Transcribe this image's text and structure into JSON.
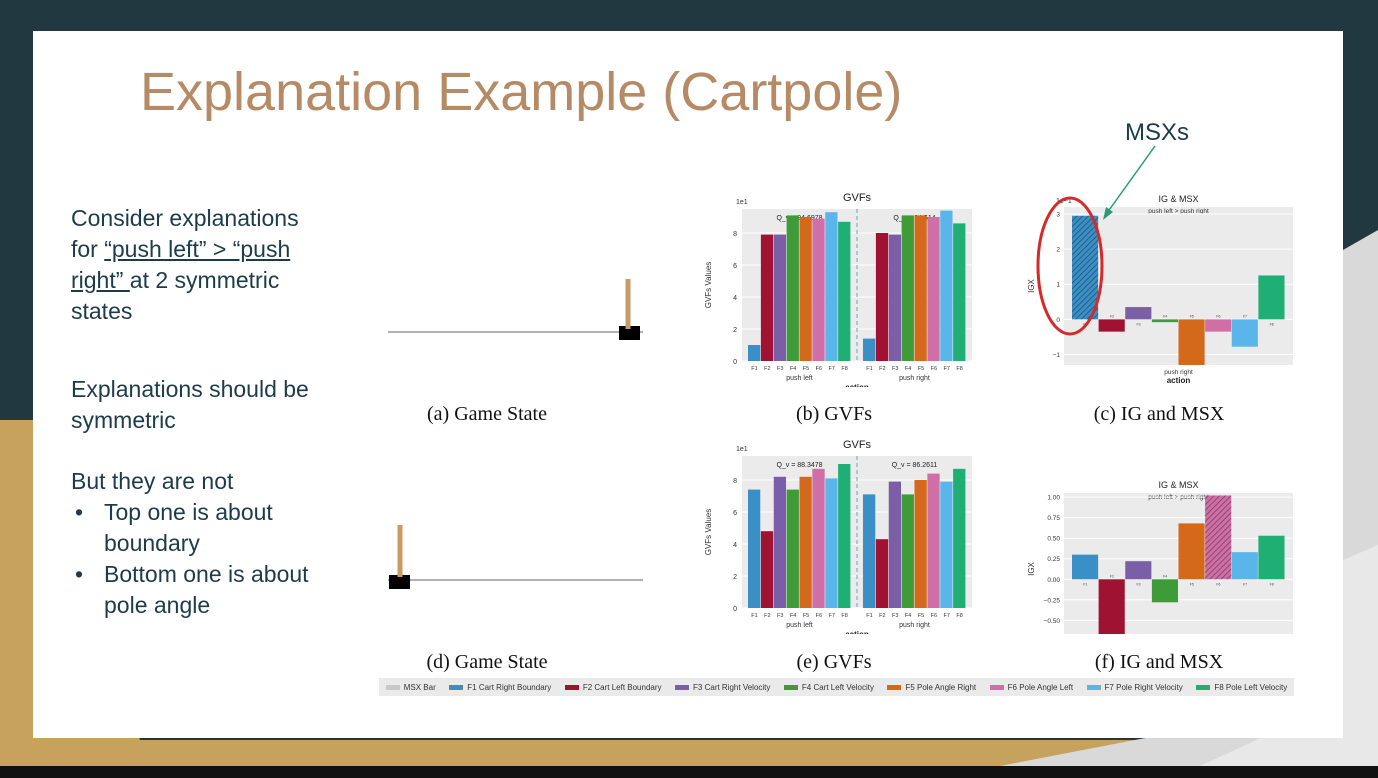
{
  "slide": {
    "title": "Explanation Example (Cartpole)",
    "intro_1": "Consider explanations",
    "intro_2a": "for ",
    "intro_2b": "“push left” > “push",
    "intro_3a": "right” ",
    "intro_3b": "at 2 symmetric",
    "intro_4": "states",
    "sym_1": "Explanations should be",
    "sym_2": "symmetric",
    "not_line": "But they are not",
    "bullet_1a": "Top one is about",
    "bullet_1b": "boundary",
    "bullet_2a": "Bottom one is about",
    "bullet_2b": "pole angle",
    "msxs_label": "MSXs"
  },
  "captions": {
    "a": "(a) Game State",
    "b": "(b) GVFs",
    "c": "(c) IG and MSX",
    "d": "(d) Game State",
    "e": "(e) GVFs",
    "f": "(f) IG and MSX"
  },
  "colors": {
    "F1": "#3a8fc7",
    "F2": "#a01232",
    "F3": "#7b5ea8",
    "F4": "#3f9a38",
    "F5": "#d4691c",
    "F6": "#cf6fa6",
    "F7": "#5ab6ea",
    "F8": "#1fae73",
    "msx": "#c8c8c8",
    "title": "#b58a64",
    "text": "#1d3b4a",
    "msx_circle": "#d42a2a",
    "arrow": "#2a9a78"
  },
  "legend": [
    {
      "label": "MSX Bar",
      "color": "#c8c8c8"
    },
    {
      "label": "F1 Cart Right Boundary",
      "color": "#3a8fc7"
    },
    {
      "label": "F2 Cart Left Boundary",
      "color": "#a01232"
    },
    {
      "label": "F3 Cart Right Velocity",
      "color": "#7b5ea8"
    },
    {
      "label": "F4 Cart Left Velocity",
      "color": "#3f9a38"
    },
    {
      "label": "F5 Pole Angle Right",
      "color": "#d4691c"
    },
    {
      "label": "F6 Pole Angle Left",
      "color": "#cf6fa6"
    },
    {
      "label": "F7 Pole Right Velocity",
      "color": "#5ab6ea"
    },
    {
      "label": "F8 Pole Left Velocity",
      "color": "#1fae73"
    }
  ],
  "chart_data": [
    {
      "id": "gvf-top",
      "type": "bar",
      "title": "GVFs",
      "scale_label": "1e1",
      "ylabel": "GVFs Values",
      "xlabel": "action",
      "ylim": [
        0,
        9.5
      ],
      "yticks": [
        0,
        2,
        4,
        6,
        8
      ],
      "categories": [
        "F1",
        "F2",
        "F3",
        "F4",
        "F5",
        "F6",
        "F7",
        "F8"
      ],
      "groups": [
        {
          "name": "push left",
          "q_label": "Q_v = 94.6978",
          "values": [
            1.0,
            7.9,
            7.9,
            9.1,
            9.0,
            8.9,
            9.3,
            8.7
          ]
        },
        {
          "name": "push right",
          "q_label": "Q_v = 94.514",
          "values": [
            1.4,
            8.0,
            7.9,
            9.1,
            9.1,
            9.0,
            9.4,
            8.6
          ]
        }
      ]
    },
    {
      "id": "igmsx-top",
      "type": "bar",
      "title": "IG & MSX",
      "subtitle": "push left > push right",
      "scale_label": "1e−1",
      "ylabel": "IGX",
      "xlabel": "action",
      "xtick": "push right",
      "ylim": [
        -1.3,
        3.2
      ],
      "yticks": [
        -1,
        0,
        1,
        2,
        3
      ],
      "ytick_labels": [
        "−1",
        "0",
        "1",
        "2",
        "3"
      ],
      "categories": [
        "F1",
        "F2",
        "F3",
        "F4",
        "F5",
        "F6",
        "F7",
        "F8"
      ],
      "values": [
        2.95,
        -0.35,
        0.35,
        -0.08,
        -1.3,
        -0.35,
        -0.78,
        1.25
      ],
      "msx": [
        "F1"
      ]
    },
    {
      "id": "gvf-bottom",
      "type": "bar",
      "title": "GVFs",
      "scale_label": "1e1",
      "ylabel": "GVFs Values",
      "xlabel": "action",
      "ylim": [
        0,
        9.5
      ],
      "yticks": [
        0,
        2,
        4,
        6,
        8
      ],
      "categories": [
        "F1",
        "F2",
        "F3",
        "F4",
        "F5",
        "F6",
        "F7",
        "F8"
      ],
      "groups": [
        {
          "name": "push left",
          "q_label": "Q_v = 88.3478",
          "values": [
            7.4,
            4.8,
            8.2,
            7.4,
            8.2,
            8.7,
            8.1,
            9.0
          ]
        },
        {
          "name": "push right",
          "q_label": "Q_v = 86.2611",
          "values": [
            7.1,
            4.3,
            7.9,
            7.1,
            8.0,
            8.4,
            7.9,
            8.7
          ]
        }
      ]
    },
    {
      "id": "igmsx-bottom",
      "type": "bar",
      "title": "IG & MSX",
      "subtitle": "push left > push right",
      "ylabel": "IGX",
      "xlabel": "action",
      "xtick": "push right",
      "ylim": [
        -0.8,
        1.05
      ],
      "yticks": [
        -0.75,
        -0.5,
        -0.25,
        0,
        0.25,
        0.5,
        0.75,
        1.0
      ],
      "ytick_labels": [
        "−0.75",
        "−0.50",
        "−0.25",
        "0.00",
        "0.25",
        "0.50",
        "0.75",
        "1.00"
      ],
      "categories": [
        "F1",
        "F2",
        "F3",
        "F4",
        "F5",
        "F6",
        "F7",
        "F8"
      ],
      "values": [
        0.3,
        -0.72,
        0.22,
        -0.28,
        0.68,
        1.02,
        0.33,
        0.53
      ],
      "msx": [
        "F6"
      ]
    }
  ]
}
